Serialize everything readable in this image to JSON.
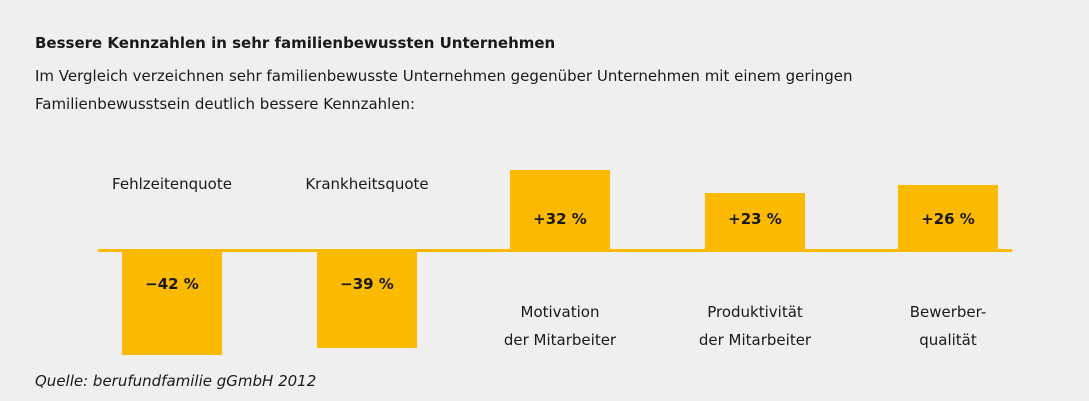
{
  "chart_data": {
    "type": "bar",
    "title": "Bessere Kennzahlen in sehr familienbewussten Unternehmen",
    "subtitle": "Im Vergleich verzeichnen sehr familienbewusste Unternehmen gegenüber Unternehmen mit einem geringen Familienbewusstsein deutlich bessere Kennzahlen:",
    "categories": [
      "Fehlzeitenquote",
      "Krankheitsquote",
      "Motivation\nder Mitarbeiter",
      "Produktivität\nder Mitarbeiter",
      "Bewerber-\nqualität"
    ],
    "values": [
      -42,
      -39,
      32,
      23,
      26
    ],
    "value_labels": [
      "−42 %",
      "−39 %",
      "+32 %",
      "+23 %",
      "+26 %"
    ],
    "color": "#fbb900",
    "source": "Quelle: berufundfamilie gGmbH 2012"
  }
}
